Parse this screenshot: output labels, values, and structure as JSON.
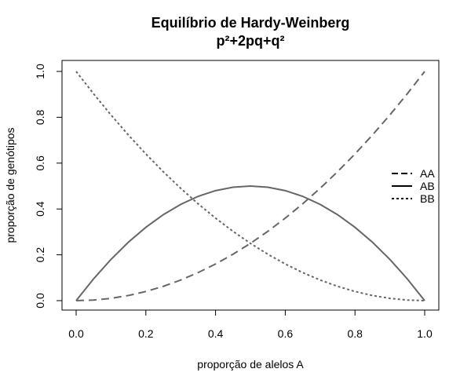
{
  "chart_data": {
    "type": "line",
    "title": "Equilíbrio de Hardy-Weinberg",
    "subtitle": "p²+2pq+q²",
    "xlabel": "proporção de alelos A",
    "ylabel": "proporção de genótipos",
    "xlim": [
      0,
      1
    ],
    "ylim": [
      0,
      1
    ],
    "x_ticks": [
      "0.0",
      "0.2",
      "0.4",
      "0.6",
      "0.8",
      "1.0"
    ],
    "y_ticks": [
      "0.0",
      "0.2",
      "0.4",
      "0.6",
      "0.8",
      "1.0"
    ],
    "grid": false,
    "legend_position": "right",
    "line_color": "#666666",
    "x": [
      0,
      0.05,
      0.1,
      0.15,
      0.2,
      0.25,
      0.3,
      0.35,
      0.4,
      0.45,
      0.5,
      0.55,
      0.6,
      0.65,
      0.7,
      0.75,
      0.8,
      0.85,
      0.9,
      0.95,
      1
    ],
    "series": [
      {
        "name": "AA",
        "dash": "dashed",
        "values": [
          0,
          0.0025,
          0.01,
          0.0225,
          0.04,
          0.0625,
          0.09,
          0.1225,
          0.16,
          0.2025,
          0.25,
          0.3025,
          0.36,
          0.4225,
          0.49,
          0.5625,
          0.64,
          0.7225,
          0.81,
          0.9025,
          1
        ]
      },
      {
        "name": "AB",
        "dash": "solid",
        "values": [
          0,
          0.095,
          0.18,
          0.255,
          0.32,
          0.375,
          0.42,
          0.455,
          0.48,
          0.495,
          0.5,
          0.495,
          0.48,
          0.455,
          0.42,
          0.375,
          0.32,
          0.255,
          0.18,
          0.095,
          0
        ]
      },
      {
        "name": "BB",
        "dash": "dotted",
        "values": [
          1,
          0.9025,
          0.81,
          0.7225,
          0.64,
          0.5625,
          0.49,
          0.4225,
          0.36,
          0.3025,
          0.25,
          0.2025,
          0.16,
          0.1225,
          0.09,
          0.0625,
          0.04,
          0.0225,
          0.01,
          0.0025,
          0
        ]
      }
    ]
  }
}
